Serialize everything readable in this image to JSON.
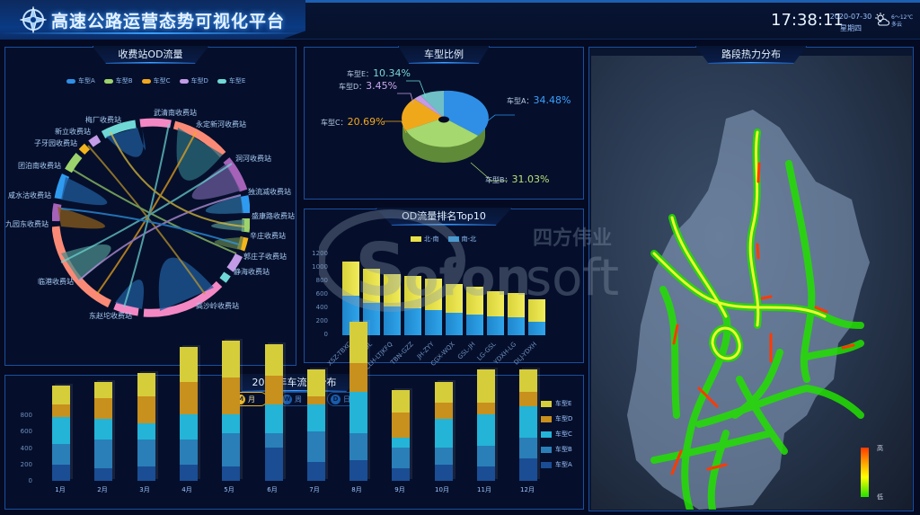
{
  "header": {
    "title": "高速公路运营态势可视化平台",
    "time": "17:38:11",
    "date": "2020-07-30",
    "weekday": "星期四",
    "weather": {
      "icon": "partly-cloudy-icon",
      "temp": "6～12℃",
      "desc": "多云"
    }
  },
  "colors": {
    "typeA": "#2f8fe6",
    "typeB": "#9dd36c",
    "typeC": "#f3a81c",
    "typeD": "#c39be6",
    "typeE": "#6fd8d6",
    "heat_high": "#ff3a00",
    "heat_low": "#22e000"
  },
  "od_chord": {
    "title": "收费站OD流量",
    "legend": [
      "车型A",
      "车型B",
      "车型C",
      "车型D",
      "车型E"
    ],
    "stations": [
      "武清南收费站",
      "永定新河收费站",
      "洞河收费站",
      "独流减收费站",
      "盛康路收费站",
      "辛庄收费站",
      "郭庄子收费站",
      "静海收费站",
      "高沙岭收费站",
      "东赵坨收费站",
      "临港收费站",
      "九园东收费站",
      "咸水沽收费站",
      "团泊南收费站",
      "子牙园收费站",
      "新立收费站",
      "梅厂收费站"
    ]
  },
  "vehicle_ratio": {
    "title": "车型比例",
    "items": [
      {
        "label": "车型A：",
        "value": "34.48%"
      },
      {
        "label": "车型B：",
        "value": "31.03%"
      },
      {
        "label": "车型C：",
        "value": "20.69%"
      },
      {
        "label": "车型D：",
        "value": "3.45%"
      },
      {
        "label": "车型E：",
        "value": "10.34%"
      }
    ]
  },
  "top10": {
    "title": "OD流量排名Top10",
    "legend": [
      "北-南",
      "南-北"
    ],
    "yticks": [
      "1200",
      "1000",
      "800",
      "600",
      "400",
      "200",
      "0"
    ],
    "categories": [
      "XSZ-TBXC",
      "BT-DL",
      "CLH-LTJKFQ",
      "TBN-GZZ",
      "JH-ZYY",
      "CGX-WQX",
      "GSL-JH",
      "LG-GSL",
      "YDXH-LG",
      "DLJ-YDXH"
    ]
  },
  "monthly": {
    "title": "2017年车流量分布",
    "toggles": [
      {
        "icon": "M",
        "label": "月"
      },
      {
        "icon": "W",
        "label": "周"
      },
      {
        "icon": "D",
        "label": "日"
      }
    ],
    "yticks": [
      "800",
      "600",
      "400",
      "200",
      "0"
    ],
    "months": [
      "1月",
      "2月",
      "3月",
      "4月",
      "5月",
      "6月",
      "7月",
      "8月",
      "9月",
      "10月",
      "11月",
      "12月"
    ],
    "legend": [
      "车型E",
      "车型D",
      "车型C",
      "车型B",
      "车型A"
    ]
  },
  "heatmap": {
    "title": "路段热力分布",
    "scale_high": "高",
    "scale_low": "低"
  },
  "watermark": {
    "cn": "四方伟业",
    "en": "Sofonsoft"
  },
  "chart_data": [
    {
      "type": "pie",
      "title": "车型比例",
      "categories": [
        "车型A",
        "车型B",
        "车型C",
        "车型D",
        "车型E"
      ],
      "values": [
        34.48,
        31.03,
        20.69,
        3.45,
        10.34
      ]
    },
    {
      "type": "bar",
      "title": "OD流量排名Top10",
      "categories": [
        "XSZ-TBXC",
        "BT-DL",
        "CLH-LTJKFQ",
        "TBN-GZZ",
        "JH-ZYY",
        "CGX-WQX",
        "GSL-JH",
        "LG-GSL",
        "YDXH-LG",
        "DLJ-YDXH"
      ],
      "series": [
        {
          "name": "南-北",
          "values": [
            580,
            470,
            420,
            390,
            370,
            330,
            310,
            280,
            270,
            200
          ]
        },
        {
          "name": "北-南",
          "values": [
            510,
            510,
            480,
            470,
            460,
            420,
            410,
            370,
            350,
            320
          ]
        }
      ],
      "ylim": [
        0,
        1200
      ],
      "stacked": true,
      "legend_position": "top"
    },
    {
      "type": "bar",
      "title": "2017年车流量分布",
      "categories": [
        "1月",
        "2月",
        "3月",
        "4月",
        "5月",
        "6月",
        "7月",
        "8月",
        "9月",
        "10月",
        "11月",
        "12月"
      ],
      "series": [
        {
          "name": "车型A",
          "values": [
            80,
            60,
            70,
            80,
            70,
            160,
            90,
            100,
            60,
            80,
            70,
            110
          ]
        },
        {
          "name": "车型B",
          "values": [
            100,
            140,
            130,
            120,
            160,
            70,
            150,
            130,
            100,
            80,
            100,
            100
          ]
        },
        {
          "name": "车型C",
          "values": [
            130,
            100,
            80,
            120,
            90,
            140,
            130,
            200,
            50,
            140,
            150,
            150
          ]
        },
        {
          "name": "车型D",
          "values": [
            60,
            100,
            130,
            160,
            180,
            140,
            40,
            140,
            120,
            80,
            60,
            70
          ]
        },
        {
          "name": "车型E",
          "values": [
            90,
            80,
            110,
            170,
            180,
            150,
            130,
            200,
            110,
            100,
            160,
            110
          ]
        }
      ],
      "ylim": [
        0,
        800
      ],
      "stacked": true,
      "legend_position": "right"
    }
  ]
}
